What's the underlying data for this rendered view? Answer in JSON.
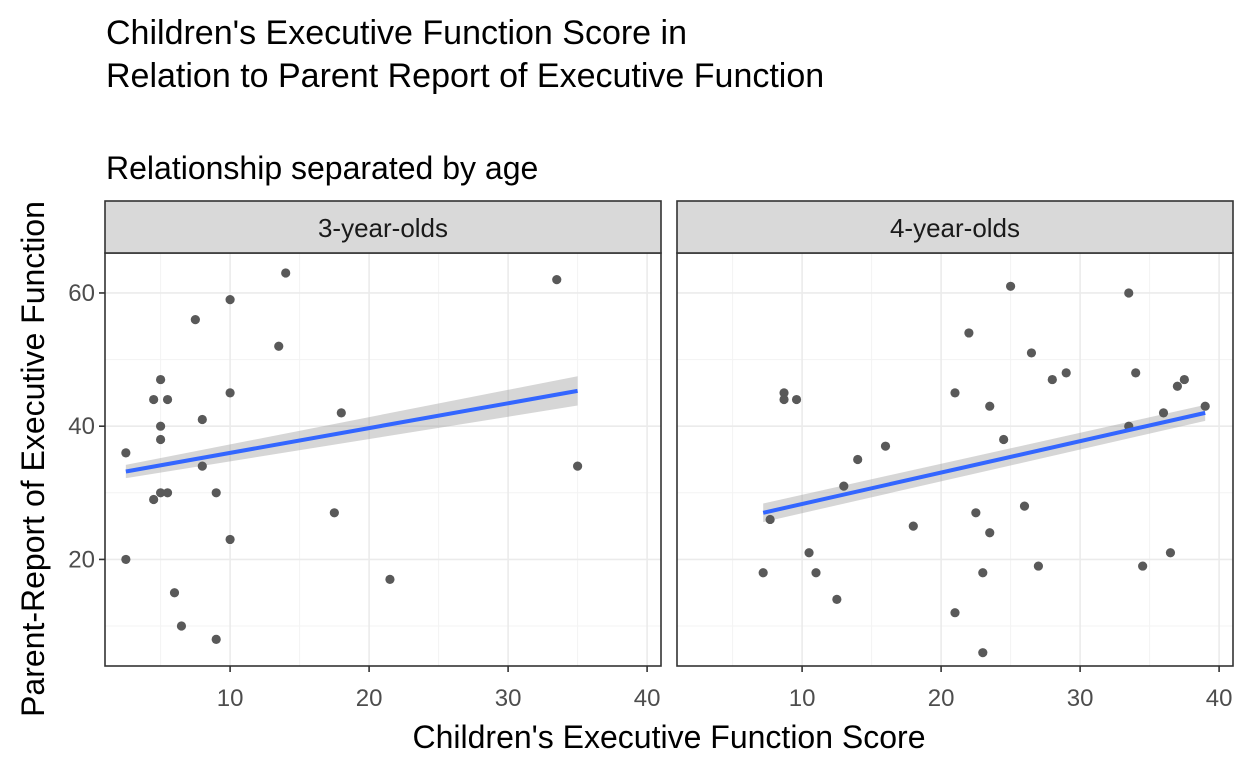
{
  "chart_data": {
    "type": "scatter",
    "title": [
      "Children's Executive Function Score in",
      "Relation to Parent Report of Executive Function"
    ],
    "subtitle": "Relationship separated by age",
    "xlabel": "Children's Executive Function Score",
    "ylabel": "Parent-Report of Executive Function",
    "xlim": [
      1,
      41
    ],
    "ylim": [
      4,
      66
    ],
    "x_ticks": [
      10,
      20,
      30,
      40
    ],
    "y_ticks": [
      20,
      40,
      60
    ],
    "grid": true,
    "facets": [
      {
        "label": "3-year-olds",
        "points": [
          [
            2.5,
            36
          ],
          [
            2.5,
            20
          ],
          [
            4.5,
            29
          ],
          [
            4.5,
            44
          ],
          [
            5,
            47
          ],
          [
            5,
            40
          ],
          [
            5,
            38
          ],
          [
            5,
            30
          ],
          [
            5.5,
            44
          ],
          [
            5.5,
            30
          ],
          [
            6,
            15
          ],
          [
            6.5,
            10
          ],
          [
            7.5,
            56
          ],
          [
            8,
            41
          ],
          [
            8,
            34
          ],
          [
            9,
            30
          ],
          [
            9,
            8
          ],
          [
            10,
            59
          ],
          [
            10,
            45
          ],
          [
            10,
            23
          ],
          [
            13.5,
            52
          ],
          [
            14,
            63
          ],
          [
            17.5,
            27
          ],
          [
            18,
            42
          ],
          [
            21.5,
            17
          ],
          [
            33.5,
            62
          ],
          [
            35,
            34
          ]
        ],
        "fit": {
          "x": [
            2.5,
            35
          ],
          "y": [
            33.2,
            45.3
          ],
          "se_low": [
            32.2,
            43.1
          ],
          "se_high": [
            34.2,
            47.5
          ]
        }
      },
      {
        "label": "4-year-olds",
        "points": [
          [
            7.2,
            18
          ],
          [
            7.7,
            26
          ],
          [
            8.7,
            45
          ],
          [
            8.7,
            44
          ],
          [
            9.6,
            44
          ],
          [
            10.5,
            21
          ],
          [
            11,
            18
          ],
          [
            12.5,
            14
          ],
          [
            13,
            31
          ],
          [
            14,
            35
          ],
          [
            16,
            37
          ],
          [
            18,
            25
          ],
          [
            21,
            45
          ],
          [
            21,
            12
          ],
          [
            22,
            54
          ],
          [
            22.5,
            27
          ],
          [
            23,
            18
          ],
          [
            23,
            6
          ],
          [
            23.5,
            43
          ],
          [
            23.5,
            24
          ],
          [
            24.5,
            38
          ],
          [
            25,
            61
          ],
          [
            26,
            28
          ],
          [
            26.5,
            51
          ],
          [
            27,
            19
          ],
          [
            28,
            47
          ],
          [
            29,
            48
          ],
          [
            33.5,
            60
          ],
          [
            33.5,
            40
          ],
          [
            34,
            48
          ],
          [
            34.5,
            19
          ],
          [
            36,
            42
          ],
          [
            36.5,
            21
          ],
          [
            37,
            46
          ],
          [
            37.5,
            47
          ],
          [
            39,
            43
          ]
        ],
        "fit": {
          "x": [
            7.2,
            39
          ],
          "y": [
            27.0,
            42.0
          ],
          "se_low": [
            25.6,
            40.8
          ],
          "se_high": [
            28.4,
            43.2
          ]
        }
      }
    ]
  }
}
